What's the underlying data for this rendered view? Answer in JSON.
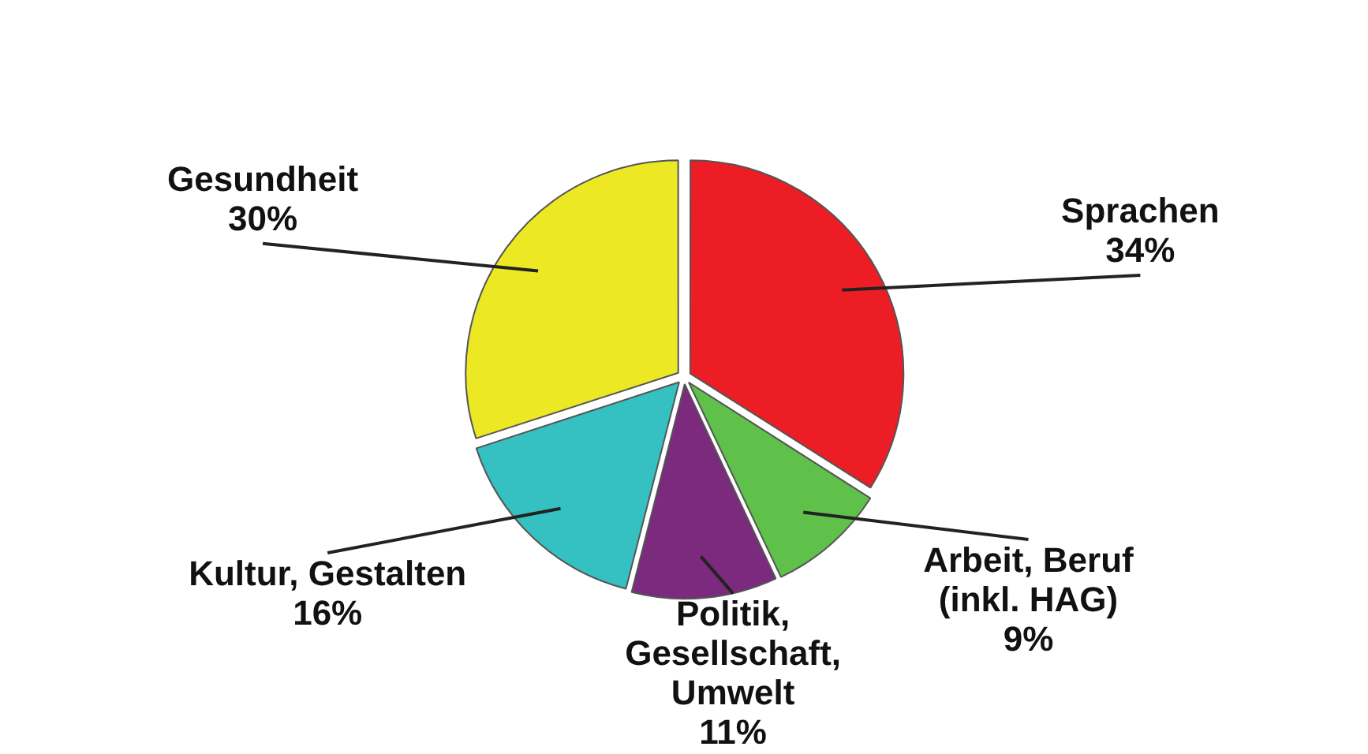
{
  "chart_data": {
    "type": "pie",
    "categories": [
      "Sprachen",
      "Arbeit, Beruf\n(inkl. HAG)",
      "Politik,\nGesellschaft,\nUmwelt",
      "Kultur, Gestalten",
      "Gesundheit"
    ],
    "values": [
      34,
      9,
      11,
      16,
      30
    ],
    "colors": [
      "#ec1d25",
      "#5fc04a",
      "#7b2a7e",
      "#35c1c1",
      "#ece824"
    ],
    "value_labels": [
      "34%",
      "9%",
      "11%",
      "16%",
      "30%"
    ],
    "legend": false
  }
}
